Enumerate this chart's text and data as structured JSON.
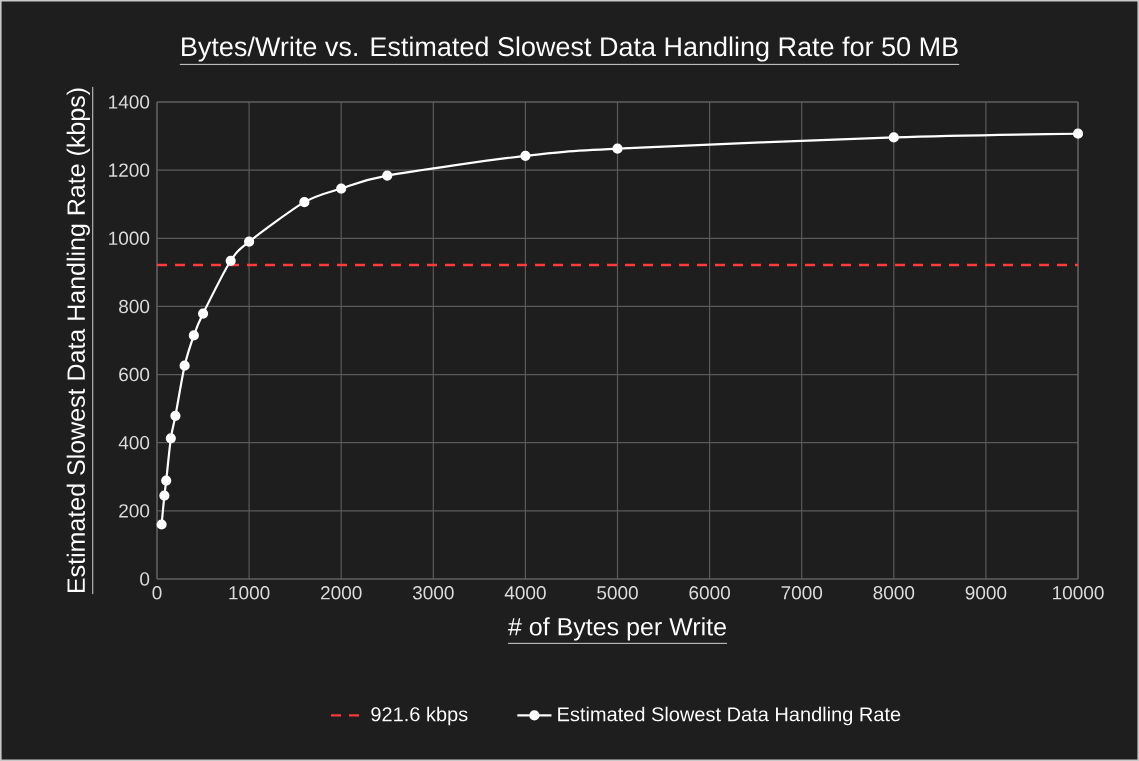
{
  "chart_data": {
    "type": "line",
    "title": "Bytes/Write vs. Estimated Slowest Data Handling Rate for 50 MB",
    "xlabel": "# of Bytes per Write",
    "ylabel": "Estimated Slowest Data Handling Rate (kbps)",
    "series": [
      {
        "name": "Estimated Slowest Data Handling Rate",
        "color": "#ffffff",
        "x": [
          50,
          80,
          100,
          150,
          200,
          300,
          400,
          500,
          800,
          1000,
          1600,
          2000,
          2500,
          4000,
          5000,
          8000,
          10000
        ],
        "values": [
          160,
          245,
          289,
          413,
          479,
          626,
          715,
          779,
          934,
          990,
          1106,
          1146,
          1184,
          1242,
          1263,
          1296,
          1307
        ]
      }
    ],
    "ref_lines": [
      {
        "axis": "y",
        "value": 921.6,
        "label": "921.6 kbps",
        "color": "#ff3b3b",
        "line_style": "dashed"
      }
    ],
    "xlim": [
      0,
      10000
    ],
    "xticks": [
      0,
      1000,
      2000,
      3000,
      4000,
      5000,
      6000,
      7000,
      8000,
      9000,
      10000
    ],
    "ylim": [
      0,
      1400
    ],
    "yticks": [
      0,
      200,
      400,
      600,
      800,
      1000,
      1200,
      1400
    ],
    "grid": true,
    "legend": "bottom",
    "marker": "circle",
    "line_style": "solid"
  }
}
